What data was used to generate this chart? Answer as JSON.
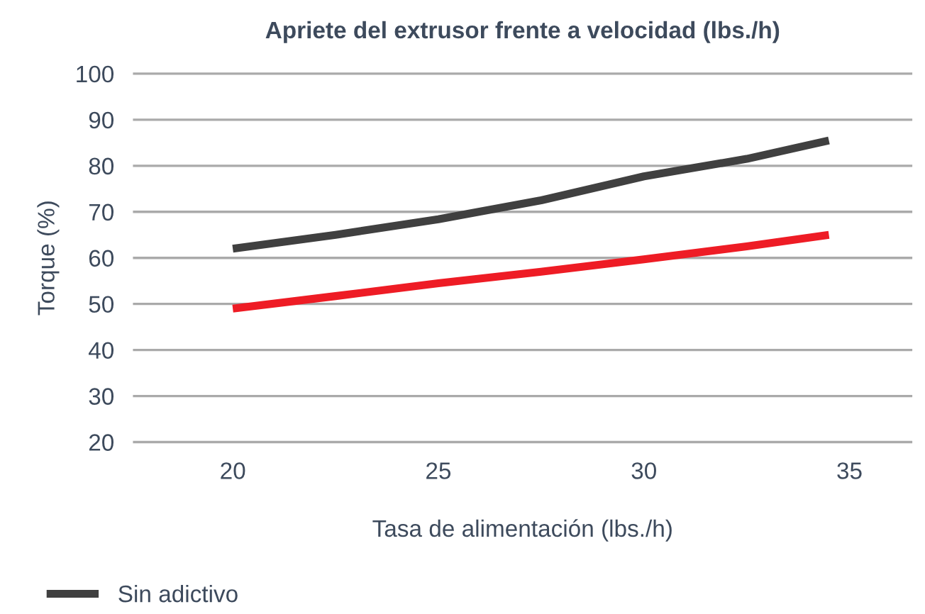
{
  "chart_data": {
    "type": "line",
    "title": "Apriete del extrusor frente a velocidad (lbs./h)",
    "xlabel": "Tasa de alimentación (lbs./h)",
    "ylabel": "Torque (%)",
    "series": [
      {
        "name": "Sin adictivo",
        "color": "#404040",
        "x": [
          20,
          22.5,
          25,
          27.5,
          30,
          32.5,
          34.5
        ],
        "values": [
          62,
          65,
          68.4,
          72.5,
          77.7,
          81.5,
          85.5
        ]
      },
      {
        "color": "#ee1c25",
        "x": [
          20,
          22.5,
          25,
          27.5,
          30,
          32.5,
          34.5
        ],
        "values": [
          49,
          51.7,
          54.5,
          57,
          59.7,
          62.5,
          65
        ]
      }
    ],
    "xlim": [
      17.6,
      36.5
    ],
    "xticks": [
      20,
      25,
      30,
      35
    ],
    "ylim": [
      20,
      100
    ],
    "yticks": [
      20,
      30,
      40,
      50,
      60,
      70,
      80,
      90,
      100
    ],
    "grid": "y",
    "legend": "bottom",
    "marker": "none",
    "line_style": "solid"
  }
}
